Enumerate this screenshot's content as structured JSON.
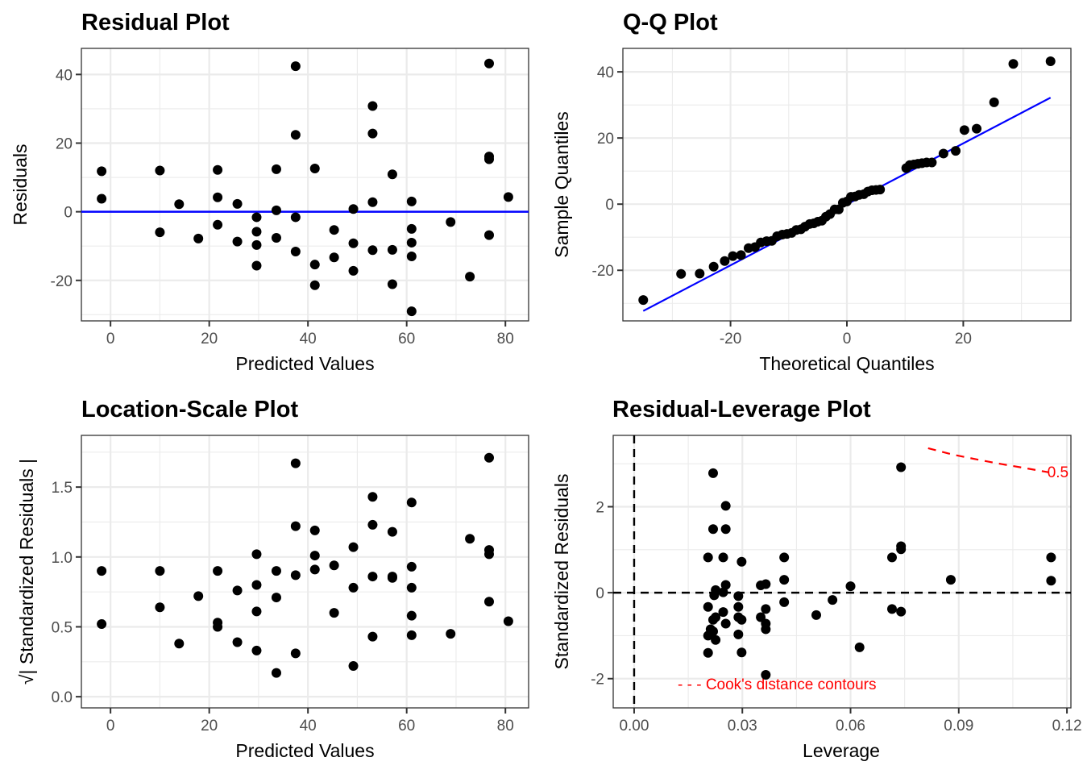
{
  "chart_data": [
    {
      "id": "residual",
      "type": "scatter",
      "title": "Residual Plot",
      "xlabel": "Predicted Values",
      "ylabel": "Residuals",
      "xlim": [
        -5.9,
        84.7
      ],
      "ylim": [
        -31.8,
        47.6
      ],
      "xticks": [
        0,
        20,
        40,
        60,
        80
      ],
      "xtick_labels": [
        "0",
        "20",
        "40",
        "60",
        "80"
      ],
      "yticks": [
        -20,
        0,
        20,
        40
      ],
      "ytick_labels": [
        "-20",
        "0",
        "20",
        "40"
      ],
      "hline": {
        "y": 0,
        "color": "#0000ff",
        "style": "solid"
      },
      "grid": true,
      "points": [
        [
          -1.8,
          11.8
        ],
        [
          -1.8,
          3.8
        ],
        [
          10,
          12
        ],
        [
          10,
          -6
        ],
        [
          13.9,
          2.2
        ],
        [
          17.8,
          -7.8
        ],
        [
          21.7,
          12.2
        ],
        [
          21.7,
          4.2
        ],
        [
          21.7,
          -3.8
        ],
        [
          25.7,
          2.3
        ],
        [
          25.7,
          -8.7
        ],
        [
          29.6,
          -1.6
        ],
        [
          29.6,
          -5.8
        ],
        [
          29.6,
          -9.7
        ],
        [
          29.6,
          -15.7
        ],
        [
          33.6,
          12.4
        ],
        [
          33.6,
          0.4
        ],
        [
          33.6,
          -7.6
        ],
        [
          37.5,
          42.4
        ],
        [
          37.5,
          22.4
        ],
        [
          37.5,
          -1.6
        ],
        [
          37.5,
          -11.6
        ],
        [
          41.4,
          12.6
        ],
        [
          41.4,
          -15.4
        ],
        [
          41.4,
          -21.4
        ],
        [
          45.3,
          -5.3
        ],
        [
          45.3,
          -13.3
        ],
        [
          49.2,
          0.8
        ],
        [
          49.2,
          -9.2
        ],
        [
          49.2,
          -17.2
        ],
        [
          53.1,
          30.8
        ],
        [
          53.1,
          22.8
        ],
        [
          53.1,
          2.8
        ],
        [
          53.1,
          -11.2
        ],
        [
          57.1,
          10.9
        ],
        [
          57.1,
          -11.1
        ],
        [
          57.1,
          -21.1
        ],
        [
          61,
          3
        ],
        [
          61,
          -5
        ],
        [
          61,
          -9
        ],
        [
          61,
          -13
        ],
        [
          61,
          -29
        ],
        [
          68.9,
          -3
        ],
        [
          72.8,
          -18.9
        ],
        [
          76.7,
          43.2
        ],
        [
          76.7,
          16.1
        ],
        [
          76.7,
          15.3
        ],
        [
          76.7,
          -6.8
        ],
        [
          80.6,
          4.3
        ]
      ]
    },
    {
      "id": "qq",
      "type": "scatter",
      "title": "Q-Q Plot",
      "xlabel": "Theoretical Quantiles",
      "ylabel": "Sample Quantiles",
      "xlim": [
        -38.5,
        38.5
      ],
      "ylim": [
        -35.3,
        47.1
      ],
      "xticks": [
        -20,
        0,
        20
      ],
      "xtick_labels": [
        "-20",
        "0",
        "20"
      ],
      "yticks": [
        -20,
        0,
        20,
        40
      ],
      "ytick_labels": [
        "-20",
        "0",
        "20",
        "40"
      ],
      "refline": {
        "x": [
          -35,
          35
        ],
        "y": [
          -32.3,
          32.2
        ],
        "color": "#0000ff"
      },
      "grid": true,
      "points": [
        [
          -35,
          -29
        ],
        [
          -28.5,
          -21.1
        ],
        [
          -25.3,
          -21
        ],
        [
          -22.9,
          -18.9
        ],
        [
          -21,
          -17.2
        ],
        [
          -19.6,
          -15.7
        ],
        [
          -18.2,
          -15.4
        ],
        [
          -16.9,
          -13.3
        ],
        [
          -15.8,
          -13
        ],
        [
          -14.8,
          -11.6
        ],
        [
          -13.8,
          -11.2
        ],
        [
          -12.9,
          -11.1
        ],
        [
          -12,
          -9.7
        ],
        [
          -11.1,
          -9.2
        ],
        [
          -10.3,
          -9
        ],
        [
          -9.5,
          -8.7
        ],
        [
          -8.7,
          -7.8
        ],
        [
          -7.9,
          -7.6
        ],
        [
          -7.2,
          -6.8
        ],
        [
          -6.4,
          -6
        ],
        [
          -5.7,
          -5.8
        ],
        [
          -5,
          -5.3
        ],
        [
          -4.3,
          -5
        ],
        [
          -3.6,
          -3.8
        ],
        [
          -2.9,
          -3
        ],
        [
          -2.1,
          -1.6
        ],
        [
          -1.4,
          -1.6
        ],
        [
          -0.7,
          0.4
        ],
        [
          0,
          0.8
        ],
        [
          0.7,
          2.2
        ],
        [
          1.4,
          2.3
        ],
        [
          2.1,
          2.8
        ],
        [
          2.9,
          3
        ],
        [
          3.6,
          3.8
        ],
        [
          4.3,
          4.2
        ],
        [
          5,
          4.3
        ],
        [
          5.7,
          4.4
        ],
        [
          10.2,
          10.9
        ],
        [
          10.8,
          11.8
        ],
        [
          11.5,
          12
        ],
        [
          12.2,
          12.2
        ],
        [
          12.9,
          12.4
        ],
        [
          13.7,
          12.6
        ],
        [
          14.6,
          12.6
        ],
        [
          16.6,
          15.3
        ],
        [
          18.7,
          16.1
        ],
        [
          20.2,
          22.4
        ],
        [
          22.3,
          22.8
        ],
        [
          25.3,
          30.8
        ],
        [
          28.6,
          42.4
        ],
        [
          35,
          43.2
        ]
      ]
    },
    {
      "id": "location-scale",
      "type": "scatter",
      "title": "Location-Scale Plot",
      "xlabel": "Predicted Values",
      "ylabel": "√| Standardized Residuals |",
      "xlim": [
        -5.9,
        84.7
      ],
      "ylim": [
        -0.08,
        1.87
      ],
      "xticks": [
        0,
        20,
        40,
        60,
        80
      ],
      "xtick_labels": [
        "0",
        "20",
        "40",
        "60",
        "80"
      ],
      "yticks": [
        0,
        0.5,
        1,
        1.5
      ],
      "ytick_labels": [
        "0.0",
        "0.5",
        "1.0",
        "1.5"
      ],
      "grid": true,
      "points": [
        [
          -1.8,
          0.9
        ],
        [
          -1.8,
          0.52
        ],
        [
          10,
          0.9
        ],
        [
          10,
          0.64
        ],
        [
          13.9,
          0.38
        ],
        [
          17.8,
          0.72
        ],
        [
          21.7,
          0.9
        ],
        [
          21.7,
          0.53
        ],
        [
          21.7,
          0.5
        ],
        [
          25.7,
          0.76
        ],
        [
          25.7,
          0.39
        ],
        [
          29.6,
          1.02
        ],
        [
          29.6,
          0.8
        ],
        [
          29.6,
          0.61
        ],
        [
          29.6,
          0.33
        ],
        [
          33.6,
          0.9
        ],
        [
          33.6,
          0.71
        ],
        [
          33.6,
          0.17
        ],
        [
          37.5,
          1.67
        ],
        [
          37.5,
          1.22
        ],
        [
          37.5,
          0.87
        ],
        [
          37.5,
          0.31
        ],
        [
          41.4,
          1.19
        ],
        [
          41.4,
          1.01
        ],
        [
          41.4,
          0.91
        ],
        [
          45.3,
          0.94
        ],
        [
          45.3,
          0.6
        ],
        [
          49.2,
          1.07
        ],
        [
          49.2,
          0.78
        ],
        [
          49.2,
          0.22
        ],
        [
          53.1,
          1.43
        ],
        [
          53.1,
          1.23
        ],
        [
          53.1,
          0.86
        ],
        [
          53.1,
          0.43
        ],
        [
          57.1,
          1.18
        ],
        [
          57.1,
          0.85
        ],
        [
          57.1,
          0.86
        ],
        [
          61,
          1.39
        ],
        [
          61,
          0.93
        ],
        [
          61,
          0.78
        ],
        [
          61,
          0.58
        ],
        [
          61,
          0.44
        ],
        [
          68.9,
          0.45
        ],
        [
          72.8,
          1.13
        ],
        [
          76.7,
          1.71
        ],
        [
          76.7,
          1.05
        ],
        [
          76.7,
          1.02
        ],
        [
          76.7,
          0.68
        ],
        [
          80.6,
          0.54
        ]
      ]
    },
    {
      "id": "residual-leverage",
      "type": "scatter",
      "title": "Residual-Leverage Plot",
      "xlabel": "Leverage",
      "ylabel": "Standardized Residuals",
      "xlim": [
        -0.0058,
        0.1211
      ],
      "ylim": [
        -2.68,
        3.66
      ],
      "xticks": [
        0,
        0.03,
        0.06,
        0.09,
        0.12
      ],
      "xtick_labels": [
        "0.00",
        "0.03",
        "0.06",
        "0.09",
        "0.12"
      ],
      "yticks": [
        -2,
        0,
        2
      ],
      "ytick_labels": [
        "-2",
        "0",
        "2"
      ],
      "hline": {
        "y": 0,
        "color": "#000000",
        "style": "dashed"
      },
      "vline": {
        "x": 0,
        "color": "#000000",
        "style": "dashed"
      },
      "cooks_contour": {
        "label": "0.5",
        "color": "#ff0000",
        "x": [
          0.0815,
          0.088,
          0.095,
          0.102,
          0.109,
          0.115
        ],
        "y": [
          3.36,
          3.22,
          3.1,
          2.99,
          2.89,
          2.8
        ]
      },
      "legend": {
        "text": "- - - Cook's distance contours",
        "color": "#ff0000",
        "position": "bottom-left"
      },
      "grid": true,
      "points": [
        [
          0.0219,
          2.78
        ],
        [
          0.0254,
          2.02
        ],
        [
          0.0219,
          1.48
        ],
        [
          0.0254,
          1.48
        ],
        [
          0.0205,
          0.82
        ],
        [
          0.0247,
          0.82
        ],
        [
          0.0298,
          0.72
        ],
        [
          0.0416,
          0.82
        ],
        [
          0.0416,
          0.3
        ],
        [
          0.0254,
          0.18
        ],
        [
          0.0351,
          0.17
        ],
        [
          0.0365,
          0.2
        ],
        [
          0.0226,
          0.06
        ],
        [
          0.0247,
          0.01
        ],
        [
          0.0222,
          -0.06
        ],
        [
          0.0289,
          -0.08
        ],
        [
          0.0205,
          -0.33
        ],
        [
          0.0289,
          -0.33
        ],
        [
          0.0365,
          -0.38
        ],
        [
          0.0416,
          -0.22
        ],
        [
          0.0226,
          -0.57
        ],
        [
          0.0247,
          -0.45
        ],
        [
          0.0289,
          -0.57
        ],
        [
          0.0351,
          -0.57
        ],
        [
          0.0219,
          -0.63
        ],
        [
          0.0298,
          -0.63
        ],
        [
          0.0254,
          -0.72
        ],
        [
          0.0365,
          -0.72
        ],
        [
          0.0212,
          -0.85
        ],
        [
          0.0205,
          -1.0
        ],
        [
          0.0219,
          -0.9
        ],
        [
          0.0226,
          -1.1
        ],
        [
          0.0289,
          -0.97
        ],
        [
          0.0365,
          -0.85
        ],
        [
          0.0205,
          -1.4
        ],
        [
          0.0298,
          -1.39
        ],
        [
          0.0365,
          -1.91
        ],
        [
          0.055,
          -0.17
        ],
        [
          0.0505,
          -0.52
        ],
        [
          0.06,
          0.15
        ],
        [
          0.0625,
          -1.27
        ],
        [
          0.0715,
          0.82
        ],
        [
          0.0715,
          -0.38
        ],
        [
          0.074,
          2.92
        ],
        [
          0.074,
          1.08
        ],
        [
          0.074,
          1.01
        ],
        [
          0.074,
          -0.44
        ],
        [
          0.0878,
          0.3
        ],
        [
          0.1156,
          0.82
        ],
        [
          0.1156,
          0.28
        ]
      ]
    }
  ]
}
